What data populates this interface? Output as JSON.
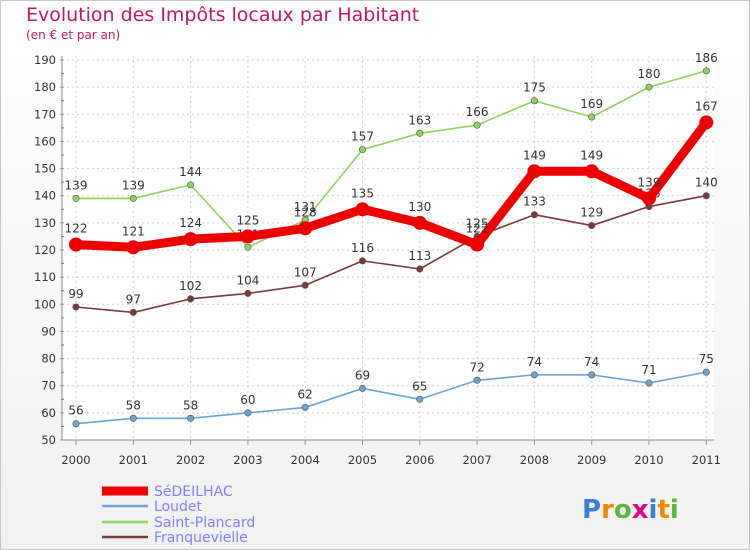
{
  "chart_data": {
    "type": "line",
    "title": "Evolution des Impôts locaux par Habitant",
    "subtitle": "(en € et par an)",
    "x": [
      "2000",
      "2001",
      "2002",
      "2003",
      "2004",
      "2005",
      "2006",
      "2007",
      "2008",
      "2009",
      "2010",
      "2011"
    ],
    "ylim": [
      50,
      190
    ],
    "yticks": [
      50,
      60,
      70,
      80,
      90,
      100,
      110,
      120,
      130,
      140,
      150,
      160,
      170,
      180,
      190
    ],
    "series": [
      {
        "name": "Loudet",
        "color": "#6fa3d6",
        "values": [
          56,
          58,
          58,
          60,
          62,
          69,
          65,
          72,
          74,
          74,
          71,
          75
        ]
      },
      {
        "name": "Saint-Plancard",
        "color": "#8fd35f",
        "values": [
          139,
          139,
          144,
          121,
          131,
          157,
          163,
          166,
          175,
          169,
          180,
          186
        ]
      },
      {
        "name": "Franquevielle",
        "color": "#7a3b3b",
        "values": [
          99,
          97,
          102,
          104,
          107,
          116,
          113,
          125,
          133,
          129,
          136,
          140
        ]
      },
      {
        "name": "SéDEILHAC",
        "color": "#ee0000",
        "values": [
          122,
          121,
          124,
          125,
          128,
          135,
          130,
          122,
          149,
          149,
          139,
          167
        ]
      }
    ],
    "legend": [
      "SéDEILHAC",
      "Loudet",
      "Saint-Plancard",
      "Franquevielle"
    ],
    "logo": "Proxiti"
  }
}
